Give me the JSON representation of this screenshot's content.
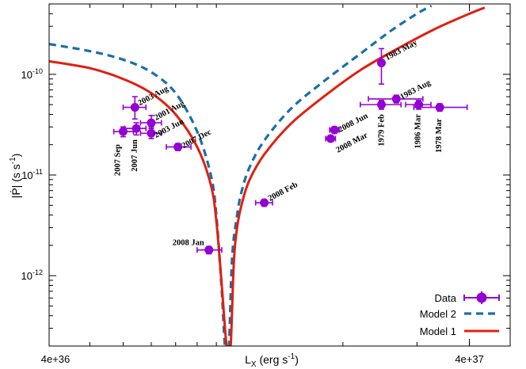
{
  "chart_data": {
    "type": "scatter",
    "title": "",
    "xlabel": "L_X (erg s^-1)",
    "xlabel_parts": {
      "main": "L",
      "sub": "X",
      "unit_pre": " (erg s",
      "unit_sup": "-1",
      "unit_post": ")"
    },
    "ylabel": "|Ṗ| (s s^-1)",
    "ylabel_parts": {
      "main": "|Ṗ| (s s",
      "sup": "-1",
      "post": ")"
    },
    "x_scale": "log",
    "y_scale": "log",
    "xlim": [
      4e+36,
      5e+37
    ],
    "ylim": [
      2e-13,
      5e-10
    ],
    "x_ticks": [
      {
        "value": 4e+36,
        "label": "4e+36"
      },
      {
        "value": 4e+37,
        "label": "4e+37"
      }
    ],
    "x_center_label": "L_X (erg s^-1)",
    "y_ticks": [
      {
        "value": 1e-12,
        "base": "10",
        "exp": "-12"
      },
      {
        "value": 1e-11,
        "base": "10",
        "exp": "-11"
      },
      {
        "value": 1e-10,
        "base": "10",
        "exp": "-10"
      }
    ],
    "legend_position": "bottom-right",
    "legend": [
      {
        "key": "data",
        "label": "Data"
      },
      {
        "key": "model2",
        "label": "Model 2"
      },
      {
        "key": "model1",
        "label": "Model 1"
      }
    ],
    "colors": {
      "data": "#9400d3",
      "model1": "#e02010",
      "model2": "#1a6fa8"
    },
    "points": [
      {
        "label": "2007 Sep",
        "x": 6e+36,
        "y": 2.7e-11,
        "xerr": [
          5.7e+36,
          6.35e+36
        ],
        "yerr": [
          2.4e-11,
          3e-11
        ]
      },
      {
        "label": "2007 Jun",
        "x": 6.45e+36,
        "y": 2.9e-11,
        "xerr": [
          6.05e+36,
          6.8e+36
        ],
        "yerr": [
          2.5e-11,
          3.3e-11
        ]
      },
      {
        "label": "2003 Aug",
        "x": 6.4e+36,
        "y": 4.7e-11,
        "xerr": [
          6e+36,
          6.8e+36
        ],
        "yerr": [
          3.6e-11,
          6e-11
        ]
      },
      {
        "label": "2001 Aug",
        "x": 7e+36,
        "y": 3.3e-11,
        "xerr": [
          6.6e+36,
          7.4e+36
        ],
        "yerr": [
          2.9e-11,
          3.9e-11
        ]
      },
      {
        "label": "2003 Jun",
        "x": 7e+36,
        "y": 2.6e-11,
        "xerr": [
          6.6e+36,
          7.4e+36
        ],
        "yerr": [
          2.3e-11,
          3e-11
        ]
      },
      {
        "label": "2007 Dec",
        "x": 8.1e+36,
        "y": 1.9e-11,
        "xerr": [
          7.6e+36,
          8.7e+36
        ],
        "yerr": [
          1.75e-11,
          2.05e-11
        ]
      },
      {
        "label": "2008 Jan",
        "x": 9.6e+36,
        "y": 1.8e-12,
        "xerr": [
          9e+36,
          1.03e+37
        ],
        "yerr": [
          1.65e-12,
          1.95e-12
        ]
      },
      {
        "label": "2008 Feb",
        "x": 1.3e+37,
        "y": 5.3e-12,
        "xerr": [
          1.24e+37,
          1.36e+37
        ],
        "yerr": [
          4.9e-12,
          5.7e-12
        ]
      },
      {
        "label": "2008 Mar",
        "x": 1.87e+37,
        "y": 2.3e-11,
        "xerr": [
          1.82e+37,
          1.92e+37
        ],
        "yerr": [
          2.15e-11,
          2.45e-11
        ]
      },
      {
        "label": "2008 Jun",
        "x": 1.91e+37,
        "y": 2.8e-11,
        "xerr": [
          1.86e+37,
          1.96e+37
        ],
        "yerr": [
          2.6e-11,
          3e-11
        ]
      },
      {
        "label": "1983 May",
        "x": 2.47e+37,
        "y": 1.3e-10,
        "xerr": [
          2.43e+37,
          2.51e+37
        ],
        "yerr": [
          8e-11,
          1.8e-10
        ]
      },
      {
        "label": "1979 Feb",
        "x": 2.47e+37,
        "y": 5e-11,
        "xerr": [
          2.2e+37,
          2.75e+37
        ],
        "yerr": [
          4.5e-11,
          5.5e-11
        ]
      },
      {
        "label": "1983 Aug",
        "x": 2.68e+37,
        "y": 5.7e-11,
        "xerr": [
          2.3e+37,
          3.1e+37
        ],
        "yerr": [
          5.2e-11,
          6.2e-11
        ]
      },
      {
        "label": "1986 Mar",
        "x": 3.03e+37,
        "y": 5e-11,
        "xerr": [
          2.82e+37,
          3.24e+37
        ],
        "yerr": [
          4.5e-11,
          5.5e-11
        ]
      },
      {
        "label": "1978 Mar",
        "x": 3.4e+37,
        "y": 4.7e-11,
        "xerr": [
          2.95e+37,
          3.95e+37
        ],
        "yerr": [
          4.3e-11,
          5.1e-11
        ]
      }
    ],
    "model1": {
      "x": [
        4e+36,
        5e+36,
        6e+36,
        7e+36,
        8e+36,
        9e+36,
        9.7e+36,
        1e+37,
        1.03e+37,
        1.06e+37,
        1.08e+37,
        1.1e+37,
        1.12e+37,
        1.15e+37,
        1.2e+37,
        1.3e+37,
        1.5e+37,
        1.8e+37,
        2.2e+37,
        2.7e+37,
        3.3e+37,
        4e+37,
        4.35e+37
      ],
      "y": [
        1.35e-10,
        1.15e-10,
        9e-11,
        6.5e-11,
        4e-11,
        1.9e-11,
        8e-12,
        3.5e-12,
        8e-13,
        1.8e-13,
        1.8e-13,
        1.3e-12,
        3e-12,
        5.2e-12,
        9e-12,
        1.6e-11,
        3.2e-11,
        6e-11,
        1.1e-10,
        1.8e-10,
        2.8e-10,
        4e-10,
        4.6e-10
      ]
    },
    "model2": {
      "x": [
        4e+36,
        5e+36,
        6e+36,
        7e+36,
        8e+36,
        9e+36,
        9.7e+36,
        1e+37,
        1.03e+37,
        1.05e+37,
        1.07e+37,
        1.09e+37,
        1.12e+37,
        1.15e+37,
        1.2e+37,
        1.3e+37,
        1.5e+37,
        1.8e+37,
        2.2e+37,
        2.6e+37,
        3e+37,
        3.25e+37
      ],
      "y": [
        2e-10,
        1.7e-10,
        1.4e-10,
        1.05e-10,
        6.5e-11,
        2.7e-11,
        1e-11,
        4e-12,
        7e-13,
        1.8e-13,
        1.8e-13,
        1.5e-12,
        4e-12,
        7e-12,
        1.2e-11,
        2.2e-11,
        4.5e-11,
        8.5e-11,
        1.6e-10,
        2.7e-10,
        4e-10,
        4.8e-10
      ]
    }
  }
}
